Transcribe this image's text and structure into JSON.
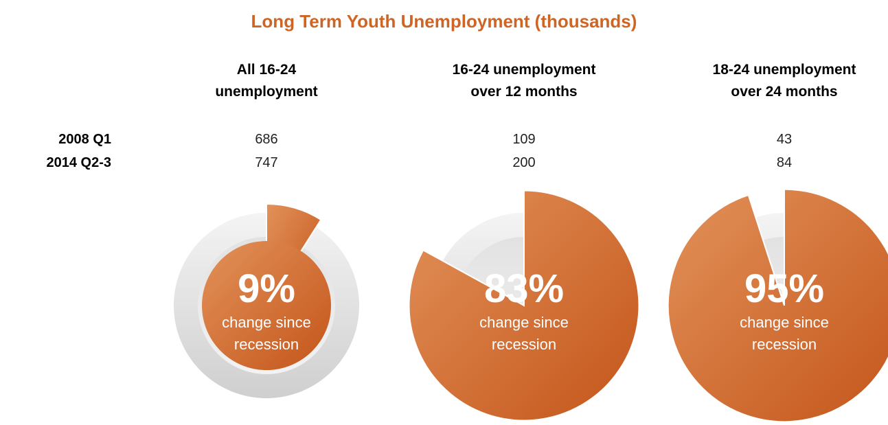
{
  "chart_data": {
    "type": "pie",
    "title": "Long Term Youth Unemployment (thousands)",
    "row_labels": [
      "2008 Q1",
      "2014 Q2-3"
    ],
    "groups": [
      {
        "header_line1": "All 16-24",
        "header_line2": "unemployment",
        "values": [
          686,
          747
        ],
        "values_text": [
          "686",
          "747"
        ],
        "change_percent": 9,
        "change_label": "9%",
        "caption_line1": "change since",
        "caption_line2": "recession"
      },
      {
        "header_line1": "16-24 unemployment",
        "header_line2": "over 12 months",
        "values": [
          109,
          200
        ],
        "values_text": [
          "109",
          "200"
        ],
        "change_percent": 83,
        "change_label": "83%",
        "caption_line1": "change since",
        "caption_line2": "recession"
      },
      {
        "header_line1": "18-24 unemployment",
        "header_line2": "over 24 months",
        "values": [
          43,
          84
        ],
        "values_text": [
          "43",
          "84"
        ],
        "change_percent": 95,
        "change_label": "95%",
        "caption_line1": "change since",
        "caption_line2": "recession"
      }
    ],
    "colors": {
      "accent": "#cf6524",
      "accent_light": "#df8a4e",
      "accent_dark": "#c4551a",
      "ring": "#d9d9d9",
      "ring_inner": "#ececec",
      "title": "#cf6524"
    }
  }
}
